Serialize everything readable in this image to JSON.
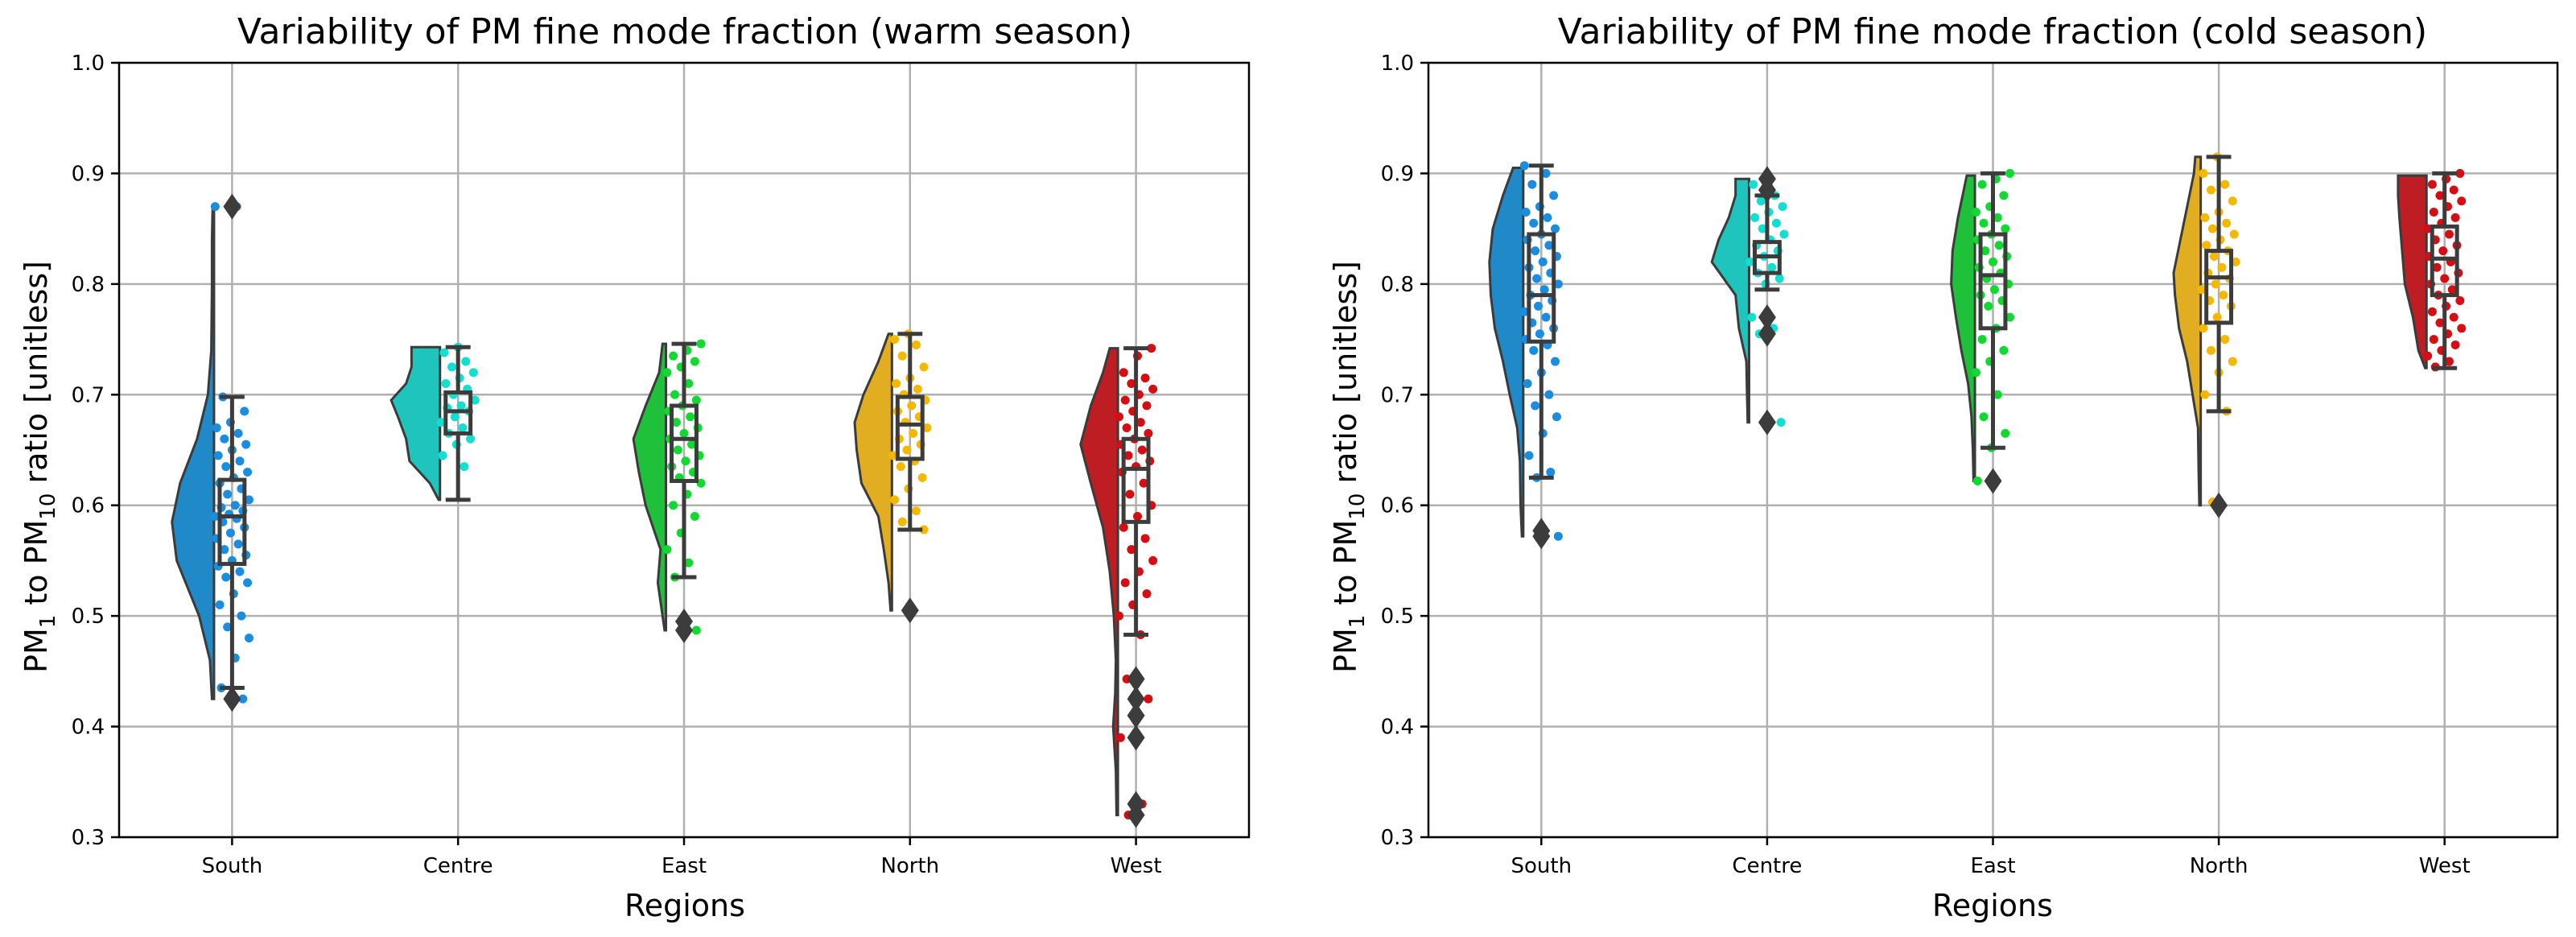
{
  "chart_data": [
    {
      "type": "raincloud",
      "title": "Variability of PM fine mode fraction (warm season)",
      "xlabel": "Regions",
      "ylabel": {
        "a": "PM",
        "a_sub": "1",
        "b": " to PM",
        "b_sub": "10",
        "c": " ratio [unitless]"
      },
      "ylim": [
        0.3,
        1.0
      ],
      "yticks": [
        "0.3",
        "0.4",
        "0.5",
        "0.6",
        "0.7",
        "0.8",
        "0.9",
        "1.0"
      ],
      "grid": true,
      "categories": [
        "South",
        "Centre",
        "East",
        "North",
        "West"
      ],
      "colors": [
        "#1f8ac7",
        "#1fc4bd",
        "#1fc13a",
        "#e0ae20",
        "#be1d23"
      ],
      "point_colors": [
        "#1a8de0",
        "#12dfd0",
        "#12d832",
        "#f5b800",
        "#d40e12"
      ],
      "groups": [
        {
          "min": 0.435,
          "q1": 0.547,
          "median": 0.59,
          "q3": 0.623,
          "max": 0.698,
          "outliers": [
            0.87,
            0.425
          ],
          "density_min": 0.425,
          "density_max": 0.87,
          "density": [
            [
              0.425,
              0.03
            ],
            [
              0.46,
              0.06
            ],
            [
              0.5,
              0.22
            ],
            [
              0.55,
              0.55
            ],
            [
              0.585,
              0.62
            ],
            [
              0.62,
              0.5
            ],
            [
              0.66,
              0.25
            ],
            [
              0.7,
              0.09
            ],
            [
              0.74,
              0.04
            ],
            [
              0.8,
              0.03
            ],
            [
              0.84,
              0.03
            ],
            [
              0.87,
              0.02
            ]
          ],
          "points": [
            0.87,
            0.87,
            0.698,
            0.685,
            0.675,
            0.67,
            0.665,
            0.66,
            0.655,
            0.65,
            0.645,
            0.64,
            0.635,
            0.63,
            0.625,
            0.62,
            0.615,
            0.61,
            0.605,
            0.6,
            0.598,
            0.595,
            0.592,
            0.59,
            0.588,
            0.585,
            0.58,
            0.575,
            0.57,
            0.565,
            0.56,
            0.555,
            0.55,
            0.545,
            0.54,
            0.535,
            0.53,
            0.52,
            0.51,
            0.5,
            0.49,
            0.48,
            0.462,
            0.435,
            0.425
          ]
        },
        {
          "min": 0.605,
          "q1": 0.665,
          "median": 0.685,
          "q3": 0.702,
          "max": 0.743,
          "outliers": [],
          "density_min": 0.605,
          "density_max": 0.743,
          "density": [
            [
              0.605,
              0.02
            ],
            [
              0.62,
              0.15
            ],
            [
              0.64,
              0.45
            ],
            [
              0.66,
              0.5
            ],
            [
              0.68,
              0.62
            ],
            [
              0.695,
              0.72
            ],
            [
              0.71,
              0.5
            ],
            [
              0.725,
              0.42
            ],
            [
              0.743,
              0.42
            ]
          ],
          "points": [
            0.743,
            0.738,
            0.73,
            0.725,
            0.72,
            0.715,
            0.71,
            0.705,
            0.7,
            0.695,
            0.69,
            0.688,
            0.685,
            0.68,
            0.675,
            0.67,
            0.665,
            0.66,
            0.655,
            0.645,
            0.635
          ]
        },
        {
          "min": 0.535,
          "q1": 0.622,
          "median": 0.66,
          "q3": 0.69,
          "max": 0.746,
          "outliers": [
            0.495,
            0.487
          ],
          "density_min": 0.487,
          "density_max": 0.746,
          "density": [
            [
              0.487,
              0.02
            ],
            [
              0.5,
              0.05
            ],
            [
              0.53,
              0.12
            ],
            [
              0.56,
              0.08
            ],
            [
              0.6,
              0.3
            ],
            [
              0.63,
              0.4
            ],
            [
              0.66,
              0.48
            ],
            [
              0.69,
              0.3
            ],
            [
              0.72,
              0.1
            ],
            [
              0.746,
              0.05
            ]
          ],
          "points": [
            0.746,
            0.74,
            0.735,
            0.73,
            0.725,
            0.72,
            0.71,
            0.7,
            0.695,
            0.69,
            0.685,
            0.68,
            0.675,
            0.67,
            0.665,
            0.66,
            0.655,
            0.65,
            0.645,
            0.64,
            0.635,
            0.63,
            0.625,
            0.62,
            0.61,
            0.6,
            0.59,
            0.575,
            0.56,
            0.548,
            0.535,
            0.487
          ]
        },
        {
          "min": 0.578,
          "q1": 0.642,
          "median": 0.673,
          "q3": 0.698,
          "max": 0.755,
          "outliers": [
            0.505
          ],
          "density_min": 0.505,
          "density_max": 0.755,
          "density": [
            [
              0.505,
              0.02
            ],
            [
              0.53,
              0.05
            ],
            [
              0.56,
              0.12
            ],
            [
              0.59,
              0.2
            ],
            [
              0.62,
              0.45
            ],
            [
              0.65,
              0.52
            ],
            [
              0.675,
              0.55
            ],
            [
              0.7,
              0.42
            ],
            [
              0.73,
              0.2
            ],
            [
              0.755,
              0.05
            ]
          ],
          "points": [
            0.755,
            0.75,
            0.745,
            0.735,
            0.725,
            0.715,
            0.71,
            0.705,
            0.7,
            0.695,
            0.69,
            0.685,
            0.68,
            0.675,
            0.67,
            0.665,
            0.66,
            0.655,
            0.65,
            0.645,
            0.64,
            0.635,
            0.625,
            0.615,
            0.605,
            0.595,
            0.585,
            0.578,
            0.505
          ]
        },
        {
          "min": 0.483,
          "q1": 0.585,
          "median": 0.633,
          "q3": 0.66,
          "max": 0.742,
          "outliers": [
            0.443,
            0.425,
            0.41,
            0.39,
            0.33,
            0.32
          ],
          "density_min": 0.32,
          "density_max": 0.742,
          "density": [
            [
              0.32,
              0.02
            ],
            [
              0.36,
              0.03
            ],
            [
              0.4,
              0.07
            ],
            [
              0.43,
              0.04
            ],
            [
              0.46,
              0.03
            ],
            [
              0.5,
              0.06
            ],
            [
              0.54,
              0.12
            ],
            [
              0.58,
              0.22
            ],
            [
              0.62,
              0.4
            ],
            [
              0.655,
              0.55
            ],
            [
              0.69,
              0.4
            ],
            [
              0.72,
              0.22
            ],
            [
              0.742,
              0.12
            ]
          ],
          "points": [
            0.742,
            0.735,
            0.72,
            0.715,
            0.71,
            0.705,
            0.7,
            0.695,
            0.69,
            0.685,
            0.68,
            0.675,
            0.67,
            0.665,
            0.66,
            0.655,
            0.65,
            0.645,
            0.64,
            0.635,
            0.63,
            0.62,
            0.61,
            0.6,
            0.59,
            0.58,
            0.57,
            0.56,
            0.55,
            0.54,
            0.53,
            0.52,
            0.51,
            0.5,
            0.483,
            0.443,
            0.425,
            0.41,
            0.39,
            0.33,
            0.32
          ]
        }
      ]
    },
    {
      "type": "raincloud",
      "title": "Variability of PM fine mode fraction (cold season)",
      "xlabel": "Regions",
      "ylabel": {
        "a": "PM",
        "a_sub": "1",
        "b": " to PM",
        "b_sub": "10",
        "c": " ratio [unitless]"
      },
      "ylim": [
        0.3,
        1.0
      ],
      "yticks": [
        "0.3",
        "0.4",
        "0.5",
        "0.6",
        "0.7",
        "0.8",
        "0.9",
        "1.0"
      ],
      "grid": true,
      "categories": [
        "South",
        "Centre",
        "East",
        "North",
        "West"
      ],
      "colors": [
        "#1f8ac7",
        "#1fc4bd",
        "#1fc13a",
        "#e0ae20",
        "#be1d23"
      ],
      "point_colors": [
        "#1a8de0",
        "#12dfd0",
        "#12d832",
        "#f5b800",
        "#d40e12"
      ],
      "groups": [
        {
          "min": 0.625,
          "q1": 0.748,
          "median": 0.79,
          "q3": 0.845,
          "max": 0.907,
          "outliers": [
            0.577,
            0.572
          ],
          "density_min": 0.572,
          "density_max": 0.905,
          "density": [
            [
              0.572,
              0.02
            ],
            [
              0.6,
              0.04
            ],
            [
              0.64,
              0.05
            ],
            [
              0.67,
              0.09
            ],
            [
              0.7,
              0.2
            ],
            [
              0.73,
              0.3
            ],
            [
              0.76,
              0.42
            ],
            [
              0.79,
              0.48
            ],
            [
              0.82,
              0.5
            ],
            [
              0.85,
              0.45
            ],
            [
              0.88,
              0.3
            ],
            [
              0.905,
              0.15
            ]
          ],
          "points": [
            0.907,
            0.9,
            0.89,
            0.88,
            0.87,
            0.865,
            0.86,
            0.855,
            0.85,
            0.845,
            0.84,
            0.835,
            0.83,
            0.825,
            0.82,
            0.815,
            0.81,
            0.805,
            0.8,
            0.795,
            0.79,
            0.785,
            0.78,
            0.775,
            0.77,
            0.765,
            0.76,
            0.755,
            0.75,
            0.745,
            0.74,
            0.73,
            0.72,
            0.71,
            0.7,
            0.69,
            0.68,
            0.665,
            0.645,
            0.63,
            0.625,
            0.572
          ]
        },
        {
          "min": 0.795,
          "q1": 0.81,
          "median": 0.825,
          "q3": 0.838,
          "max": 0.88,
          "outliers": [
            0.895,
            0.885,
            0.77,
            0.755,
            0.675
          ],
          "density_min": 0.675,
          "density_max": 0.895,
          "density": [
            [
              0.675,
              0.02
            ],
            [
              0.7,
              0.03
            ],
            [
              0.73,
              0.04
            ],
            [
              0.76,
              0.15
            ],
            [
              0.79,
              0.2
            ],
            [
              0.82,
              0.55
            ],
            [
              0.84,
              0.45
            ],
            [
              0.86,
              0.3
            ],
            [
              0.88,
              0.2
            ],
            [
              0.895,
              0.2
            ]
          ],
          "points": [
            0.895,
            0.89,
            0.88,
            0.875,
            0.87,
            0.865,
            0.86,
            0.855,
            0.85,
            0.845,
            0.84,
            0.835,
            0.83,
            0.825,
            0.82,
            0.815,
            0.81,
            0.805,
            0.8,
            0.77,
            0.76,
            0.755,
            0.675
          ]
        },
        {
          "min": 0.652,
          "q1": 0.76,
          "median": 0.808,
          "q3": 0.845,
          "max": 0.9,
          "outliers": [
            0.622
          ],
          "density_min": 0.622,
          "density_max": 0.898,
          "density": [
            [
              0.622,
              0.02
            ],
            [
              0.65,
              0.03
            ],
            [
              0.68,
              0.05
            ],
            [
              0.71,
              0.1
            ],
            [
              0.74,
              0.2
            ],
            [
              0.77,
              0.28
            ],
            [
              0.8,
              0.35
            ],
            [
              0.83,
              0.33
            ],
            [
              0.86,
              0.25
            ],
            [
              0.898,
              0.12
            ]
          ],
          "points": [
            0.9,
            0.895,
            0.89,
            0.88,
            0.87,
            0.865,
            0.86,
            0.855,
            0.85,
            0.845,
            0.84,
            0.835,
            0.83,
            0.825,
            0.82,
            0.815,
            0.81,
            0.805,
            0.8,
            0.795,
            0.79,
            0.785,
            0.78,
            0.77,
            0.76,
            0.75,
            0.74,
            0.73,
            0.72,
            0.7,
            0.68,
            0.665,
            0.652,
            0.622
          ]
        },
        {
          "min": 0.685,
          "q1": 0.765,
          "median": 0.806,
          "q3": 0.83,
          "max": 0.915,
          "outliers": [
            0.6
          ],
          "density_min": 0.6,
          "density_max": 0.915,
          "density": [
            [
              0.6,
              0.02
            ],
            [
              0.63,
              0.03
            ],
            [
              0.67,
              0.04
            ],
            [
              0.7,
              0.12
            ],
            [
              0.73,
              0.2
            ],
            [
              0.76,
              0.32
            ],
            [
              0.79,
              0.38
            ],
            [
              0.81,
              0.4
            ],
            [
              0.84,
              0.3
            ],
            [
              0.87,
              0.2
            ],
            [
              0.9,
              0.1
            ],
            [
              0.915,
              0.08
            ]
          ],
          "points": [
            0.915,
            0.9,
            0.89,
            0.885,
            0.875,
            0.865,
            0.86,
            0.855,
            0.85,
            0.845,
            0.84,
            0.835,
            0.83,
            0.825,
            0.82,
            0.815,
            0.81,
            0.805,
            0.8,
            0.795,
            0.79,
            0.785,
            0.78,
            0.77,
            0.76,
            0.75,
            0.74,
            0.73,
            0.72,
            0.7,
            0.685,
            0.603
          ]
        },
        {
          "min": 0.724,
          "q1": 0.79,
          "median": 0.823,
          "q3": 0.852,
          "max": 0.9,
          "outliers": [],
          "density_min": 0.724,
          "density_max": 0.898,
          "density": [
            [
              0.724,
              0.02
            ],
            [
              0.74,
              0.12
            ],
            [
              0.77,
              0.2
            ],
            [
              0.8,
              0.32
            ],
            [
              0.83,
              0.36
            ],
            [
              0.86,
              0.4
            ],
            [
              0.88,
              0.42
            ],
            [
              0.898,
              0.42
            ]
          ],
          "points": [
            0.9,
            0.895,
            0.89,
            0.885,
            0.88,
            0.875,
            0.87,
            0.865,
            0.86,
            0.855,
            0.85,
            0.845,
            0.84,
            0.835,
            0.83,
            0.825,
            0.82,
            0.815,
            0.81,
            0.805,
            0.8,
            0.795,
            0.79,
            0.785,
            0.78,
            0.775,
            0.77,
            0.765,
            0.76,
            0.755,
            0.75,
            0.745,
            0.74,
            0.735,
            0.73,
            0.725
          ]
        }
      ]
    }
  ]
}
